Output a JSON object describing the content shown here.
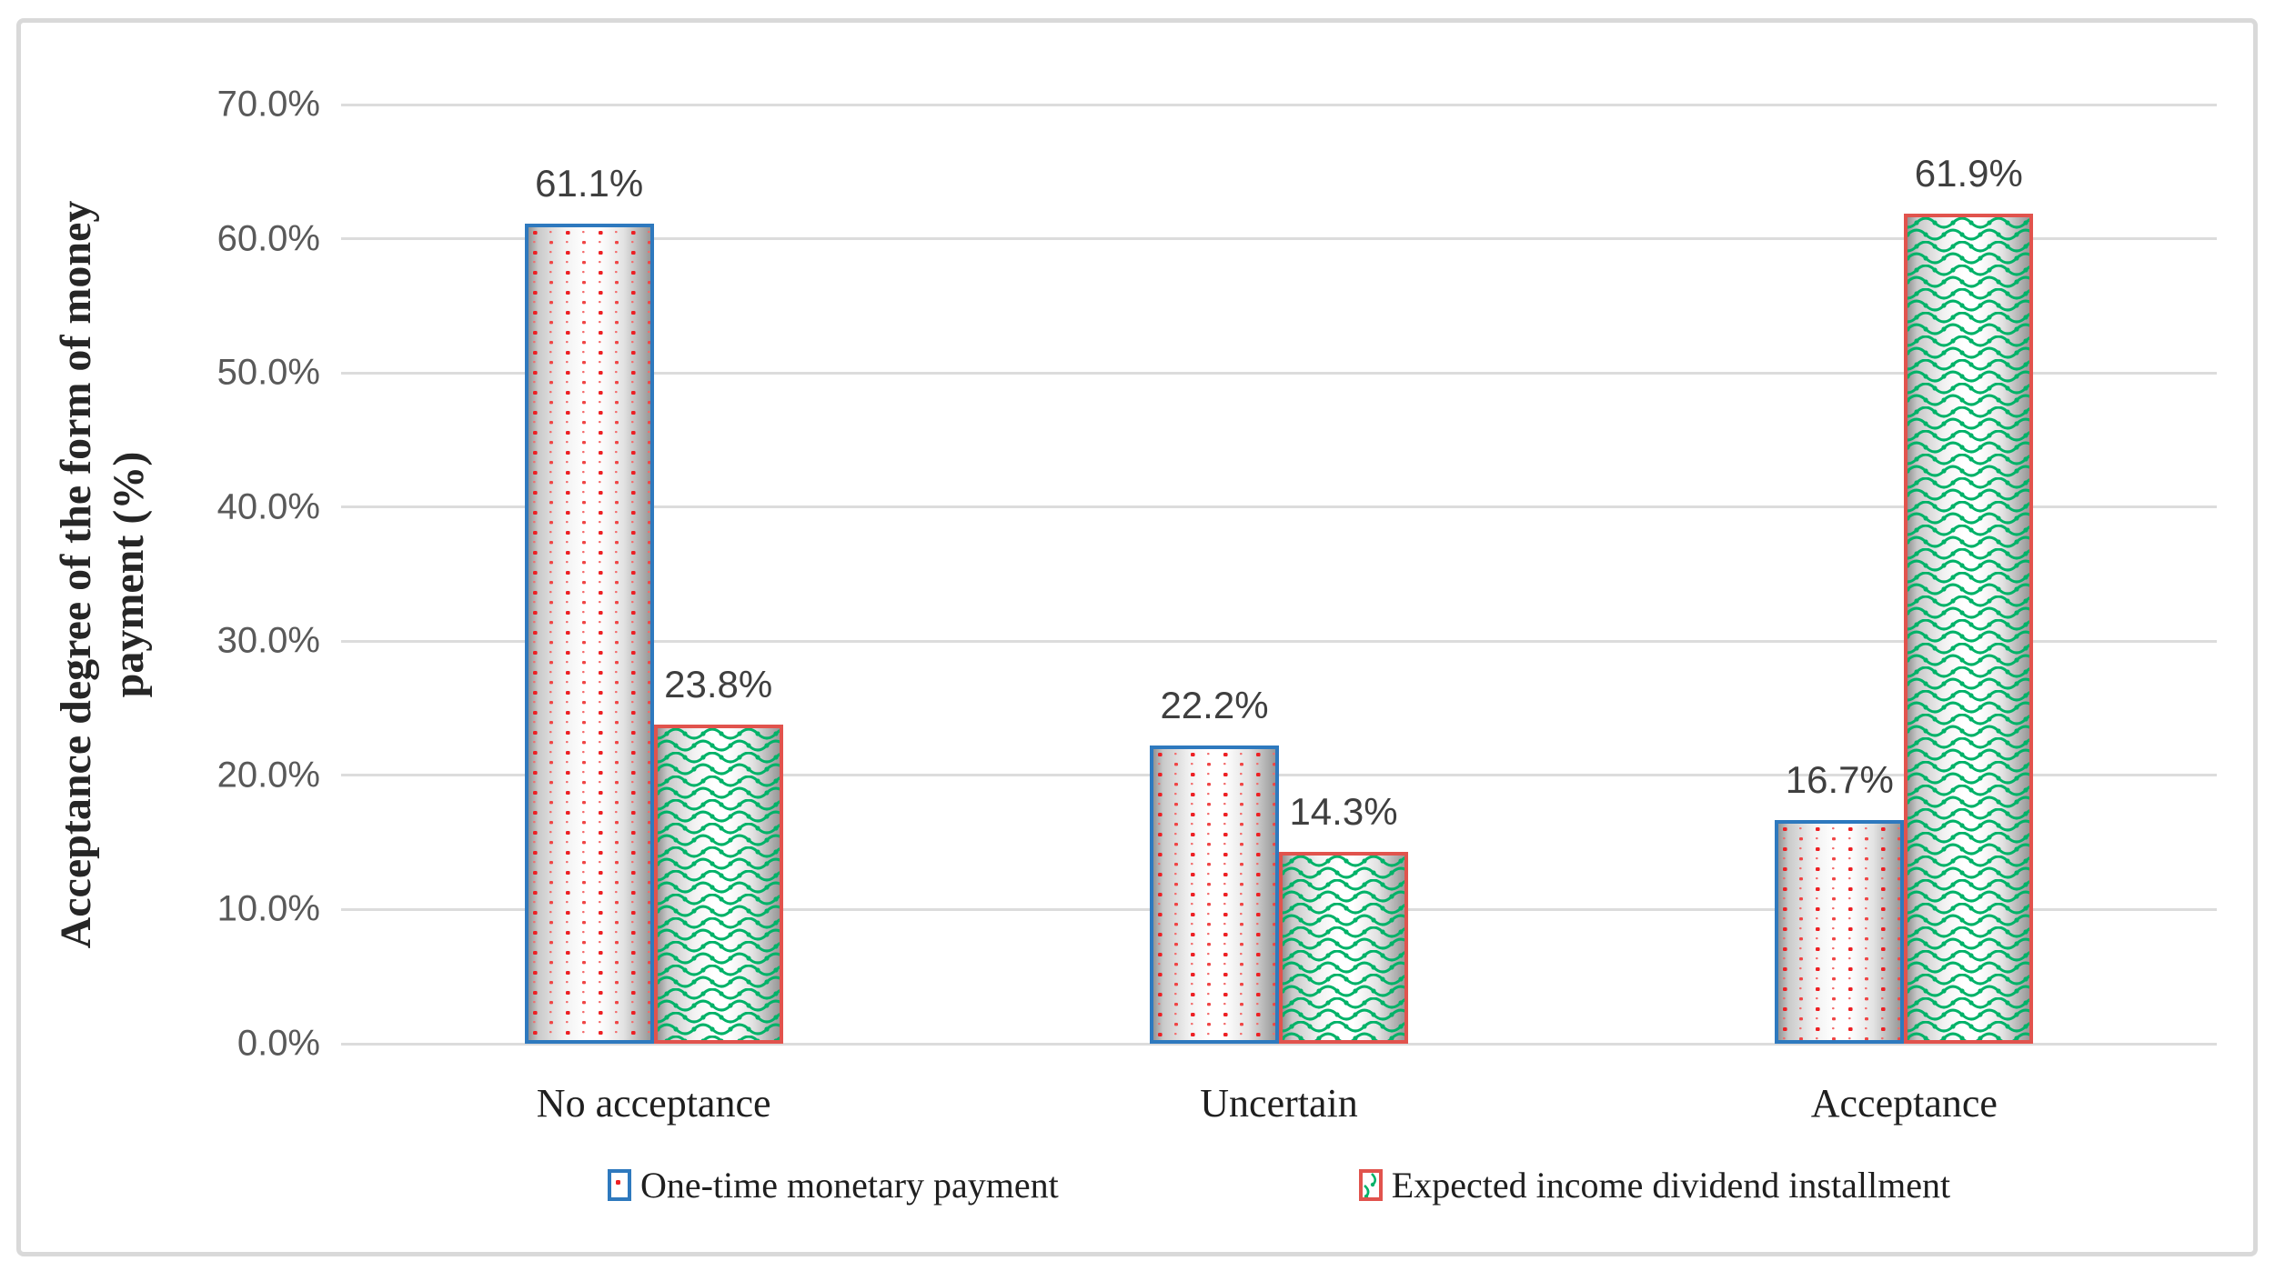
{
  "chart_data": {
    "type": "bar",
    "title": "",
    "categories": [
      "No acceptance",
      "Uncertain",
      "Acceptance"
    ],
    "series": [
      {
        "name": "One-time monetary payment",
        "values": [
          61.1,
          22.2,
          16.7
        ],
        "data_labels": [
          "61.1%",
          "22.2%",
          "16.7%"
        ],
        "border_color": "#2E79BE",
        "pattern": "red-dots",
        "pattern_color": "#ED2024",
        "fill": "gray-white cylinder gradient"
      },
      {
        "name": "Expected income dividend installment",
        "values": [
          23.8,
          14.3,
          61.9
        ],
        "data_labels": [
          "23.8%",
          "14.3%",
          "61.9%"
        ],
        "border_color": "#E1534D",
        "pattern": "green-shingle",
        "pattern_color": "#00B268",
        "fill": "gray-white cylinder gradient"
      }
    ],
    "ylabel": "Acceptance degree of the form of money payment (%)",
    "ylabel_lines": [
      "Acceptance degree of the form of money",
      "payment (%)"
    ],
    "xlabel": "",
    "ylim": [
      0,
      70
    ],
    "ytick_step": 10,
    "yticks": [
      "0.0%",
      "10.0%",
      "20.0%",
      "30.0%",
      "40.0%",
      "50.0%",
      "60.0%",
      "70.0%"
    ],
    "grid": true,
    "legend_position": "bottom"
  },
  "style": {
    "gridline_color": "#DCDCDC",
    "frame_color": "#D9D9D9",
    "tick_text_color": "#595959",
    "value_label_color": "#3F3F3F",
    "category_text_color": "#1F1F1F"
  }
}
